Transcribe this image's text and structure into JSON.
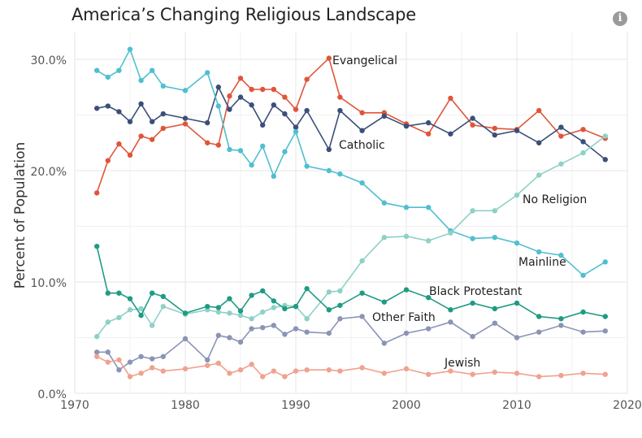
{
  "title": "America’s Changing Religious Landscape",
  "info_icon": "info-icon",
  "chart_data": {
    "type": "line",
    "xlabel": "",
    "ylabel": "Percent of Population",
    "xlim": [
      1970,
      2020
    ],
    "ylim": [
      0,
      32
    ],
    "x_ticks": [
      "1970",
      "1980",
      "1990",
      "2000",
      "2010",
      "2020"
    ],
    "y_ticks": [
      "0.0%",
      "10.0%",
      "20.0%",
      "30.0%"
    ],
    "grid": true,
    "x": [
      1972,
      1973,
      1974,
      1975,
      1976,
      1977,
      1978,
      1980,
      1982,
      1983,
      1984,
      1985,
      1986,
      1987,
      1988,
      1989,
      1990,
      1991,
      1993,
      1994,
      1996,
      1998,
      2000,
      2002,
      2004,
      2006,
      2008,
      2010,
      2012,
      2014,
      2016,
      2018
    ],
    "series": [
      {
        "name": "Evangelical",
        "color": "#e0553a",
        "values": [
          18.0,
          20.9,
          22.4,
          21.4,
          23.1,
          22.8,
          23.8,
          24.2,
          22.5,
          22.3,
          26.7,
          28.3,
          27.3,
          27.3,
          27.3,
          26.6,
          25.5,
          28.2,
          30.1,
          26.6,
          25.2,
          25.2,
          24.2,
          23.3,
          26.5,
          24.1,
          23.8,
          23.7,
          25.4,
          23.1,
          23.7,
          22.9
        ]
      },
      {
        "name": "Catholic",
        "color": "#3b4f7a",
        "values": [
          25.6,
          25.8,
          25.3,
          24.4,
          26.0,
          24.4,
          25.1,
          24.7,
          24.3,
          27.5,
          25.5,
          26.6,
          25.9,
          24.1,
          25.9,
          25.1,
          23.9,
          25.4,
          21.9,
          25.4,
          23.6,
          24.9,
          24.0,
          24.3,
          23.3,
          24.7,
          23.2,
          23.6,
          22.5,
          23.9,
          22.6,
          21.0
        ]
      },
      {
        "name": "Mainline",
        "color": "#4fbfd1",
        "values": [
          29.0,
          28.4,
          29.0,
          30.9,
          28.1,
          29.0,
          27.6,
          27.2,
          28.8,
          25.8,
          21.9,
          21.8,
          20.5,
          22.2,
          19.5,
          21.7,
          23.5,
          20.4,
          20.0,
          19.7,
          18.9,
          17.1,
          16.7,
          16.7,
          14.6,
          13.9,
          14.0,
          13.5,
          12.7,
          12.4,
          10.6,
          11.8
        ]
      },
      {
        "name": "No Religion",
        "color": "#8ed1c6",
        "values": [
          5.1,
          6.4,
          6.8,
          7.5,
          7.6,
          6.1,
          7.8,
          7.1,
          7.5,
          7.3,
          7.2,
          7.0,
          6.7,
          7.3,
          7.7,
          7.9,
          7.8,
          6.7,
          9.1,
          9.2,
          11.9,
          14.0,
          14.1,
          13.7,
          14.4,
          16.4,
          16.4,
          17.8,
          19.6,
          20.6,
          21.6,
          23.1
        ]
      },
      {
        "name": "Black Protestant",
        "color": "#1f9b84",
        "values": [
          13.2,
          9.0,
          9.0,
          8.5,
          7.0,
          9.0,
          8.7,
          7.2,
          7.8,
          7.7,
          8.5,
          7.4,
          8.8,
          9.2,
          8.3,
          7.6,
          7.8,
          9.4,
          7.5,
          7.9,
          9.0,
          8.2,
          9.3,
          8.6,
          7.5,
          8.1,
          7.6,
          8.1,
          6.9,
          6.7,
          7.3,
          6.9
        ]
      },
      {
        "name": "Other Faith",
        "color": "#8a94b5",
        "values": [
          3.7,
          3.7,
          2.1,
          2.8,
          3.3,
          3.1,
          3.3,
          4.9,
          3.0,
          5.2,
          5.0,
          4.6,
          5.8,
          5.9,
          6.1,
          5.3,
          5.8,
          5.5,
          5.4,
          6.7,
          6.9,
          4.5,
          5.4,
          5.8,
          6.4,
          5.1,
          6.3,
          5.0,
          5.5,
          6.1,
          5.5,
          5.6
        ]
      },
      {
        "name": "Jewish",
        "color": "#f0a28e",
        "values": [
          3.3,
          2.8,
          3.0,
          1.5,
          1.8,
          2.3,
          2.0,
          2.2,
          2.5,
          2.7,
          1.8,
          2.1,
          2.6,
          1.5,
          2.0,
          1.5,
          2.0,
          2.1,
          2.1,
          2.0,
          2.3,
          1.8,
          2.2,
          1.7,
          2.0,
          1.7,
          1.9,
          1.8,
          1.5,
          1.6,
          1.8,
          1.7
        ]
      }
    ]
  }
}
